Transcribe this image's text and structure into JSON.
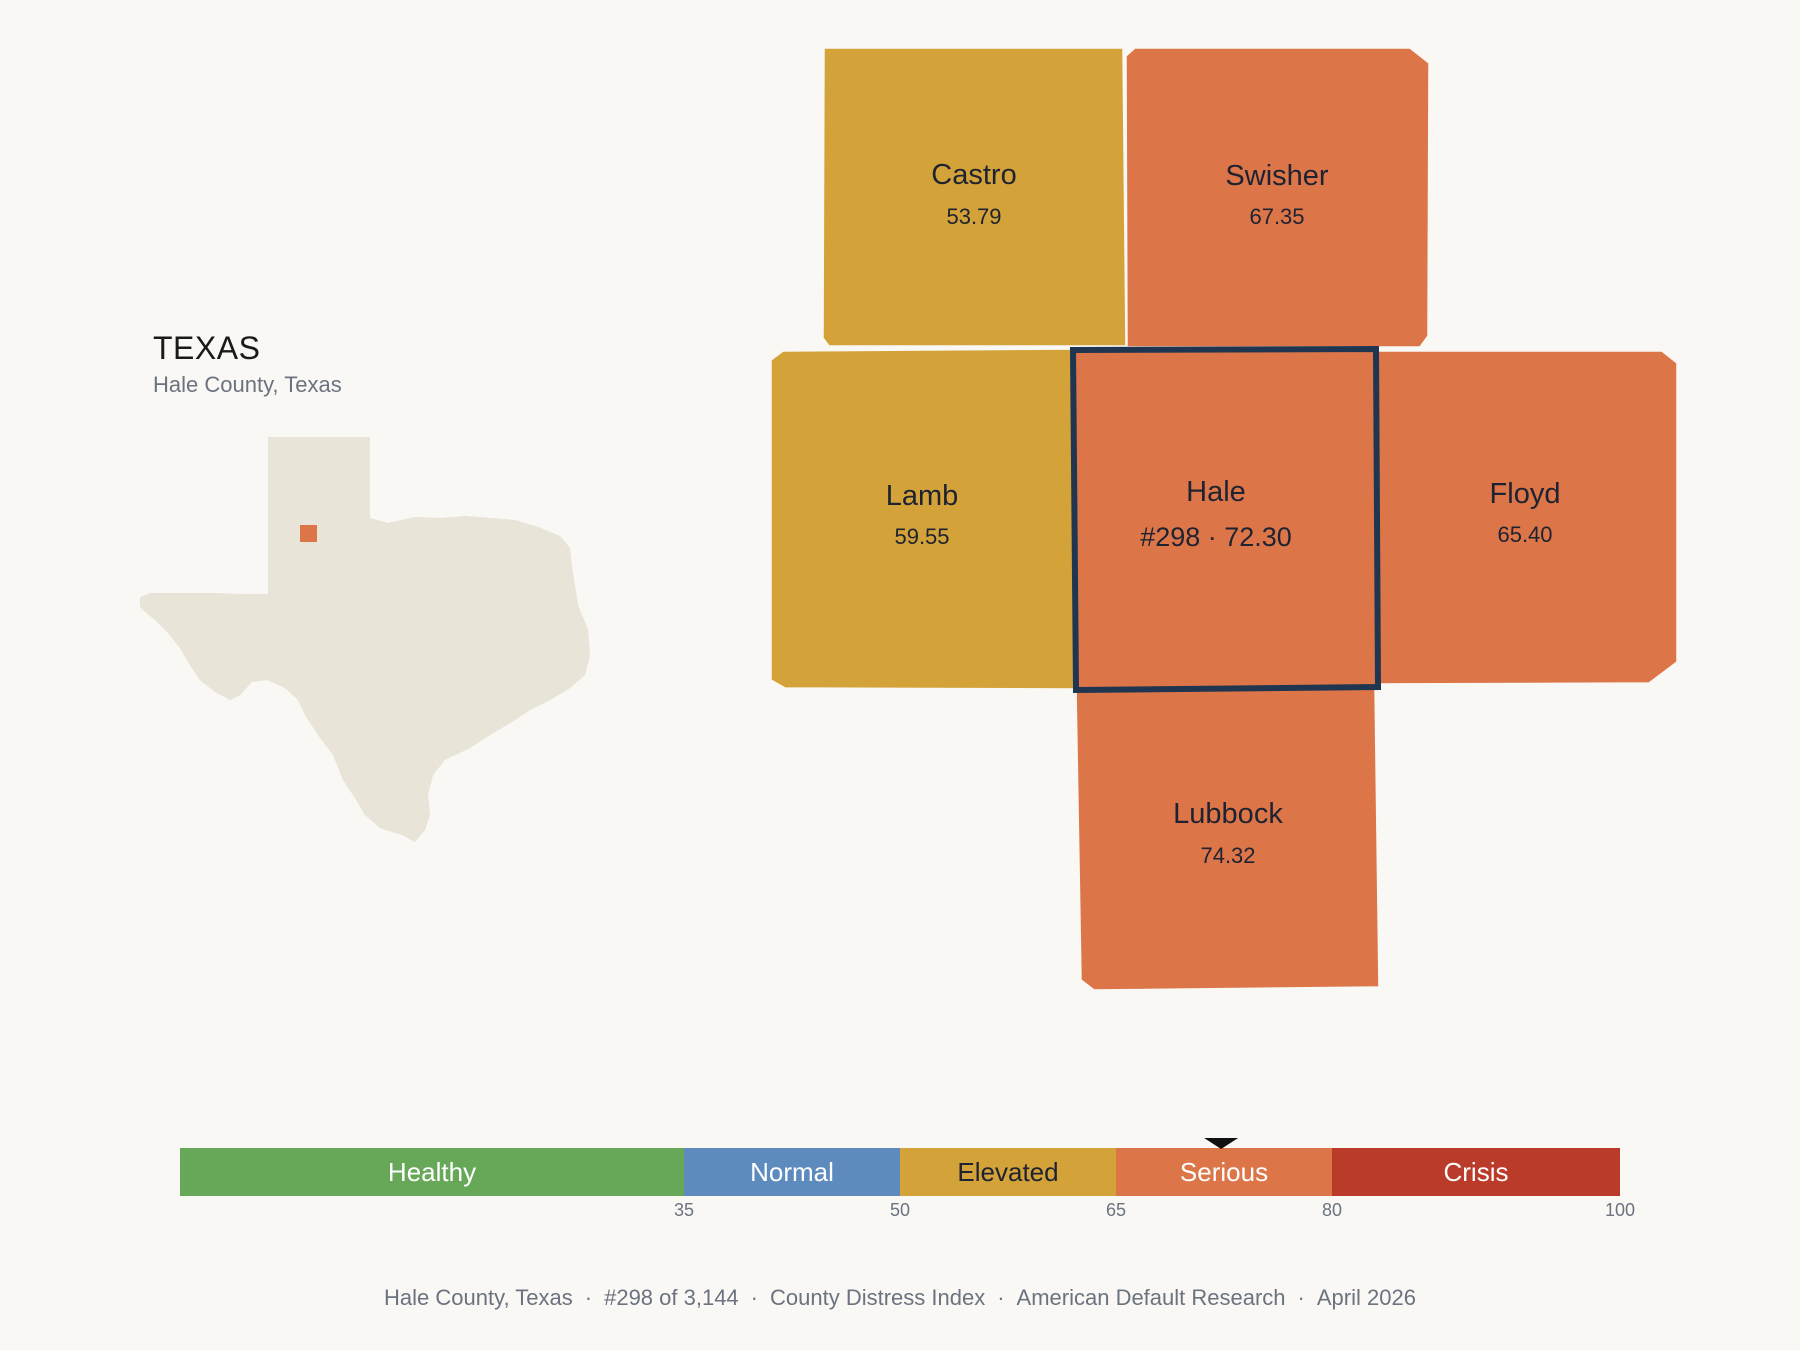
{
  "state": {
    "title": "TEXAS",
    "subtitle": "Hale County, Texas"
  },
  "colors": {
    "healthy": "#66a858",
    "normal": "#5d8bbd",
    "elevated": "#d3a33a",
    "serious": "#dc7649",
    "crisis": "#bb3b2b",
    "inset_land": "#e9e4d8",
    "focus_border": "#1f3550",
    "background": "#faf8f4"
  },
  "counties": {
    "castro": {
      "name": "Castro",
      "value": "53.79",
      "band": "elevated"
    },
    "swisher": {
      "name": "Swisher",
      "value": "67.35",
      "band": "serious"
    },
    "lamb": {
      "name": "Lamb",
      "value": "59.55",
      "band": "elevated"
    },
    "hale": {
      "name": "Hale",
      "value": "#298 · 72.30",
      "band": "serious"
    },
    "floyd": {
      "name": "Floyd",
      "value": "65.40",
      "band": "serious"
    },
    "lubbock": {
      "name": "Lubbock",
      "value": "74.32",
      "band": "serious"
    }
  },
  "scale": {
    "bands": [
      {
        "label": "Healthy",
        "from": 0,
        "to": 35,
        "color": "#66a858",
        "text_color": "#ffffff"
      },
      {
        "label": "Normal",
        "from": 35,
        "to": 50,
        "color": "#5d8bbd",
        "text_color": "#ffffff"
      },
      {
        "label": "Elevated",
        "from": 50,
        "to": 65,
        "color": "#d3a33a",
        "text_color": "#1f2230"
      },
      {
        "label": "Serious",
        "from": 65,
        "to": 80,
        "color": "#dc7649",
        "text_color": "#ffffff"
      },
      {
        "label": "Crisis",
        "from": 80,
        "to": 100,
        "color": "#bb3b2b",
        "text_color": "#ffffff"
      }
    ],
    "ticks": [
      "35",
      "50",
      "65",
      "80",
      "100"
    ],
    "marker_value": 72.3
  },
  "footer": {
    "county": "Hale County, Texas",
    "rank": "#298 of 3,144",
    "index": "County Distress Index",
    "source": "American Default Research",
    "date": "April 2026"
  }
}
